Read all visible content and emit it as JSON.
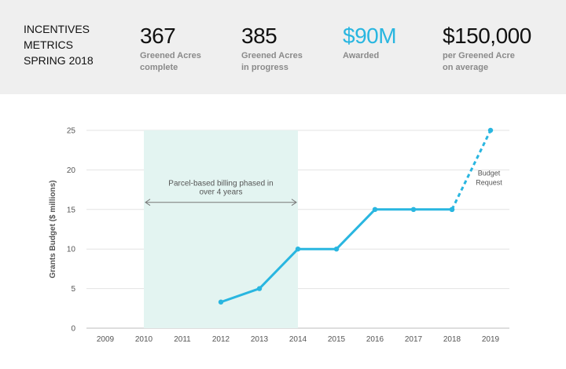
{
  "banner": {
    "title_lines": [
      "INCENTIVES",
      "METRICS",
      "SPRING 2018"
    ],
    "metrics": [
      {
        "value": "367",
        "label_lines": [
          "Greened Acres",
          "complete"
        ],
        "color": "#111111"
      },
      {
        "value": "385",
        "label_lines": [
          "Greened Acres",
          "in progress"
        ],
        "color": "#111111"
      },
      {
        "value": "$90M",
        "label_lines": [
          "Awarded"
        ],
        "color": "#29b6e0"
      },
      {
        "value": "$150,000",
        "label_lines": [
          "per Greened Acre",
          "on average"
        ],
        "color": "#111111"
      }
    ]
  },
  "chart_data": {
    "type": "line",
    "title": "",
    "xlabel": "",
    "ylabel": "Grants Budget ($ millions)",
    "x_ticks": [
      "2009",
      "2010",
      "2011",
      "2012",
      "2013",
      "2014",
      "2015",
      "2016",
      "2017",
      "2018",
      "2019"
    ],
    "y_ticks": [
      0,
      5,
      10,
      15,
      20,
      25
    ],
    "xlim": [
      2009,
      2019
    ],
    "ylim": [
      0,
      25
    ],
    "grid": true,
    "line_color": "#29b6e0",
    "series": [
      {
        "name": "",
        "x": [
          2012,
          2013,
          2014,
          2015,
          2016,
          2017,
          2018
        ],
        "y": [
          3.3,
          5,
          10,
          10,
          15,
          15,
          15
        ],
        "style": "solid"
      },
      {
        "name": "",
        "x": [
          2018,
          2019
        ],
        "y": [
          15,
          25
        ],
        "style": "dashed"
      }
    ],
    "shaded_region": {
      "x_range": [
        2010,
        2014
      ],
      "color": "#e3f4f1",
      "label_lines": [
        "Parcel-based billing phased in",
        "over 4 years"
      ]
    },
    "annotations": [
      {
        "text_lines": [
          "Budget",
          "Request"
        ],
        "x": 2019,
        "y": 19
      }
    ]
  }
}
